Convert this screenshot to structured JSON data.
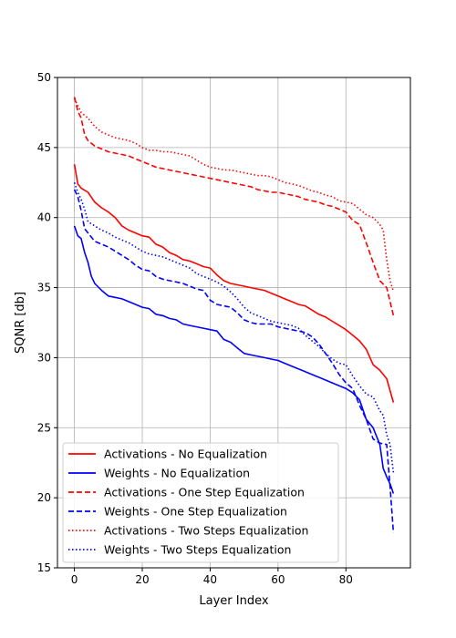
{
  "chart_data": {
    "type": "line",
    "xlabel": "Layer Index",
    "ylabel": "SQNR [db]",
    "xlim": [
      -5,
      99
    ],
    "ylim": [
      15,
      50
    ],
    "xticks": [
      0,
      20,
      40,
      60,
      80
    ],
    "yticks": [
      15,
      20,
      25,
      30,
      35,
      40,
      45,
      50
    ],
    "grid": true,
    "legend_position": "lower-left",
    "series": [
      {
        "name": "Activations - No Equalization",
        "color": "#ff0000",
        "style": "solid",
        "x": [
          0,
          1,
          2,
          4,
          6,
          8,
          10,
          12,
          14,
          16,
          18,
          20,
          22,
          24,
          26,
          28,
          30,
          32,
          34,
          36,
          38,
          40,
          42,
          44,
          46,
          48,
          50,
          52,
          54,
          56,
          58,
          60,
          62,
          64,
          66,
          68,
          70,
          72,
          74,
          76,
          78,
          80,
          82,
          84,
          86,
          88,
          90,
          92,
          94
        ],
        "y": [
          43.8,
          42.4,
          42.1,
          41.8,
          41.1,
          40.7,
          40.4,
          40.0,
          39.4,
          39.1,
          38.9,
          38.7,
          38.6,
          38.1,
          37.9,
          37.5,
          37.3,
          37.0,
          36.9,
          36.7,
          36.5,
          36.4,
          35.9,
          35.5,
          35.3,
          35.2,
          35.1,
          35.0,
          34.9,
          34.8,
          34.6,
          34.4,
          34.2,
          34.0,
          33.8,
          33.7,
          33.4,
          33.1,
          32.9,
          32.6,
          32.3,
          32.0,
          31.6,
          31.2,
          30.6,
          29.5,
          29.1,
          28.5,
          26.8
        ]
      },
      {
        "name": "Weights - No Equalization",
        "color": "#0000ff",
        "style": "solid",
        "x": [
          0,
          1,
          2,
          3,
          4,
          5,
          6,
          8,
          10,
          12,
          14,
          16,
          18,
          20,
          22,
          24,
          26,
          28,
          30,
          32,
          34,
          36,
          38,
          40,
          42,
          44,
          46,
          48,
          50,
          52,
          54,
          56,
          58,
          60,
          62,
          64,
          66,
          68,
          70,
          72,
          74,
          76,
          78,
          80,
          82,
          84,
          86,
          88,
          90,
          91,
          92,
          93,
          94
        ],
        "y": [
          39.4,
          38.7,
          38.5,
          37.5,
          36.8,
          35.8,
          35.3,
          34.8,
          34.4,
          34.3,
          34.2,
          34.0,
          33.8,
          33.6,
          33.5,
          33.1,
          33.0,
          32.8,
          32.7,
          32.4,
          32.3,
          32.2,
          32.1,
          32.0,
          31.9,
          31.3,
          31.1,
          30.7,
          30.3,
          30.2,
          30.1,
          30.0,
          29.9,
          29.8,
          29.6,
          29.4,
          29.2,
          29.0,
          28.8,
          28.6,
          28.4,
          28.2,
          28.0,
          27.8,
          27.5,
          27.0,
          25.6,
          25.0,
          23.8,
          22.1,
          21.5,
          21.0,
          20.3
        ]
      },
      {
        "name": "Activations - One Step Equalization",
        "color": "#ff0000",
        "style": "dashed",
        "x": [
          0,
          1,
          2,
          3,
          4,
          6,
          8,
          10,
          12,
          14,
          16,
          18,
          20,
          22,
          24,
          26,
          28,
          30,
          32,
          34,
          36,
          38,
          40,
          42,
          44,
          46,
          48,
          50,
          52,
          54,
          56,
          58,
          60,
          62,
          64,
          66,
          68,
          70,
          72,
          74,
          76,
          78,
          80,
          82,
          84,
          86,
          88,
          90,
          92,
          94
        ],
        "y": [
          48.6,
          47.6,
          47.1,
          45.9,
          45.5,
          45.1,
          44.9,
          44.7,
          44.6,
          44.5,
          44.4,
          44.2,
          44.0,
          43.8,
          43.6,
          43.5,
          43.4,
          43.3,
          43.2,
          43.1,
          43.0,
          42.9,
          42.8,
          42.7,
          42.6,
          42.5,
          42.4,
          42.3,
          42.2,
          42.0,
          41.9,
          41.8,
          41.8,
          41.7,
          41.6,
          41.5,
          41.3,
          41.2,
          41.1,
          40.9,
          40.8,
          40.6,
          40.4,
          39.8,
          39.5,
          38.2,
          36.8,
          35.5,
          35.0,
          33.0
        ]
      },
      {
        "name": "Weights - One Step Equalization",
        "color": "#0000ff",
        "style": "dashed",
        "x": [
          0,
          1,
          2,
          3,
          4,
          6,
          8,
          10,
          12,
          14,
          16,
          18,
          20,
          22,
          24,
          26,
          28,
          30,
          32,
          34,
          36,
          38,
          40,
          42,
          44,
          46,
          48,
          50,
          52,
          54,
          56,
          58,
          60,
          62,
          64,
          66,
          68,
          70,
          72,
          74,
          76,
          78,
          80,
          82,
          84,
          86,
          88,
          90,
          92,
          93,
          94
        ],
        "y": [
          42.0,
          41.5,
          40.5,
          39.2,
          38.9,
          38.3,
          38.1,
          37.9,
          37.6,
          37.3,
          37.0,
          36.6,
          36.3,
          36.2,
          35.8,
          35.6,
          35.5,
          35.4,
          35.3,
          35.1,
          34.9,
          34.8,
          34.1,
          33.8,
          33.7,
          33.6,
          33.2,
          32.7,
          32.5,
          32.4,
          32.4,
          32.4,
          32.2,
          32.1,
          32.0,
          31.9,
          31.8,
          31.5,
          31.0,
          30.3,
          29.6,
          28.8,
          28.2,
          27.8,
          26.6,
          25.6,
          24.2,
          23.9,
          23.8,
          20.8,
          17.5
        ]
      },
      {
        "name": "Activations - Two Steps Equalization",
        "color": "#ff0000",
        "style": "dotted",
        "x": [
          0,
          1,
          2,
          3,
          4,
          6,
          8,
          10,
          12,
          14,
          16,
          18,
          20,
          22,
          24,
          26,
          28,
          30,
          32,
          34,
          36,
          38,
          40,
          42,
          44,
          46,
          48,
          50,
          52,
          54,
          56,
          58,
          60,
          62,
          64,
          66,
          68,
          70,
          72,
          74,
          76,
          78,
          80,
          82,
          84,
          86,
          88,
          90,
          91,
          92,
          93,
          94
        ],
        "y": [
          48.5,
          48.0,
          47.5,
          47.3,
          47.1,
          46.5,
          46.1,
          45.9,
          45.7,
          45.6,
          45.5,
          45.3,
          45.0,
          44.8,
          44.8,
          44.7,
          44.7,
          44.6,
          44.5,
          44.4,
          44.1,
          43.8,
          43.6,
          43.5,
          43.4,
          43.4,
          43.3,
          43.2,
          43.1,
          43.0,
          43.0,
          42.9,
          42.7,
          42.5,
          42.4,
          42.3,
          42.1,
          41.9,
          41.8,
          41.6,
          41.5,
          41.2,
          41.1,
          41.0,
          40.6,
          40.2,
          40.0,
          39.5,
          39.1,
          37.0,
          35.5,
          34.7
        ]
      },
      {
        "name": "Weights - Two Steps Equalization",
        "color": "#0000ff",
        "style": "dotted",
        "x": [
          0,
          1,
          2,
          3,
          4,
          6,
          8,
          10,
          12,
          14,
          16,
          18,
          20,
          22,
          24,
          26,
          28,
          30,
          32,
          34,
          36,
          38,
          40,
          42,
          44,
          46,
          48,
          50,
          52,
          54,
          56,
          58,
          60,
          62,
          64,
          66,
          68,
          70,
          72,
          74,
          76,
          78,
          80,
          82,
          84,
          86,
          88,
          90,
          91,
          92,
          93,
          94
        ],
        "y": [
          42.5,
          41.8,
          41.3,
          40.6,
          39.7,
          39.4,
          39.1,
          38.9,
          38.6,
          38.4,
          38.2,
          37.9,
          37.6,
          37.4,
          37.3,
          37.2,
          37.0,
          36.8,
          36.6,
          36.4,
          36.0,
          35.8,
          35.6,
          35.4,
          35.1,
          34.7,
          34.2,
          33.6,
          33.2,
          33.0,
          32.8,
          32.6,
          32.5,
          32.4,
          32.3,
          32.1,
          31.6,
          31.2,
          30.8,
          30.3,
          29.9,
          29.6,
          29.5,
          28.7,
          28.0,
          27.4,
          27.2,
          26.2,
          25.9,
          24.5,
          23.8,
          21.8
        ]
      }
    ]
  }
}
